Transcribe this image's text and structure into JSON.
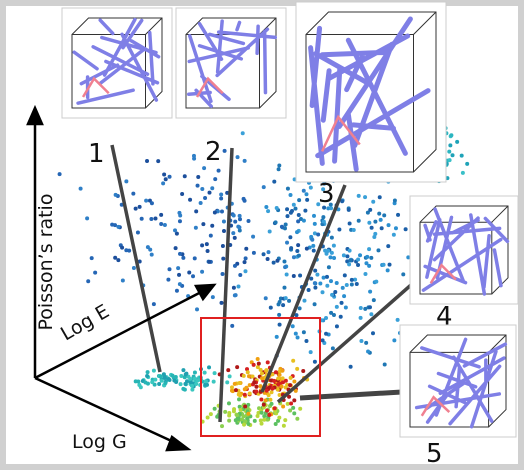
{
  "axes": {
    "poisson": "Poisson’s ratio",
    "log_e": "Log E",
    "log_g": "Log G"
  },
  "insets": [
    {
      "label": "1"
    },
    {
      "label": "2"
    },
    {
      "label": "3"
    },
    {
      "label": "4"
    },
    {
      "label": "5"
    }
  ]
}
